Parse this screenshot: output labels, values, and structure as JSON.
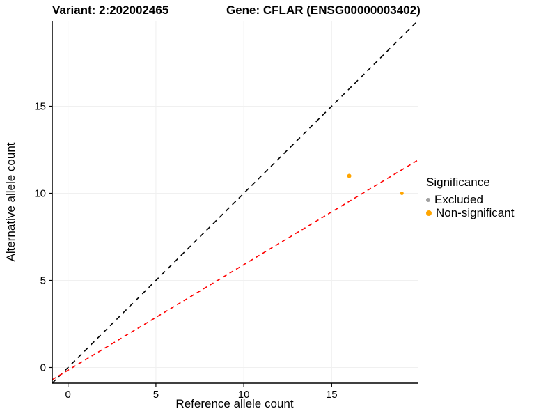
{
  "chart_data": {
    "type": "scatter",
    "titles": {
      "left": "Variant: 2:202002465",
      "right": "Gene: CFLAR (ENSG00000003402)"
    },
    "xlabel": "Reference allele count",
    "ylabel": "Alternative allele count",
    "xlim": [
      -0.9,
      19.9
    ],
    "ylim": [
      -0.9,
      19.9
    ],
    "xticks": [
      0,
      5,
      10,
      15
    ],
    "yticks": [
      0,
      5,
      10,
      15
    ],
    "grid": true,
    "grid_color": "#F0F0F0",
    "points": [
      {
        "x": 16,
        "y": 11,
        "r": 3,
        "series": "Non-significant"
      },
      {
        "x": 19,
        "y": 10,
        "r": 2.5,
        "series": "Non-significant"
      }
    ],
    "lines": [
      {
        "name": "identity",
        "x1": -0.9,
        "y1": -0.9,
        "x2": 19.9,
        "y2": 19.9,
        "color": "#000000",
        "dash": "7 6"
      },
      {
        "name": "fit",
        "x1": -0.9,
        "y1": -0.7,
        "x2": 19.9,
        "y2": 11.9,
        "color": "#FF0000",
        "dash": "6 5"
      }
    ],
    "series_colors": {
      "Excluded": "#A0A0A0",
      "Non-significant": "#FFA500"
    },
    "legend": {
      "title": "Significance",
      "position": "right",
      "items": [
        {
          "label": "Excluded",
          "color": "#A0A0A0"
        },
        {
          "label": "Non-significant",
          "color": "#FFA500"
        }
      ]
    }
  }
}
